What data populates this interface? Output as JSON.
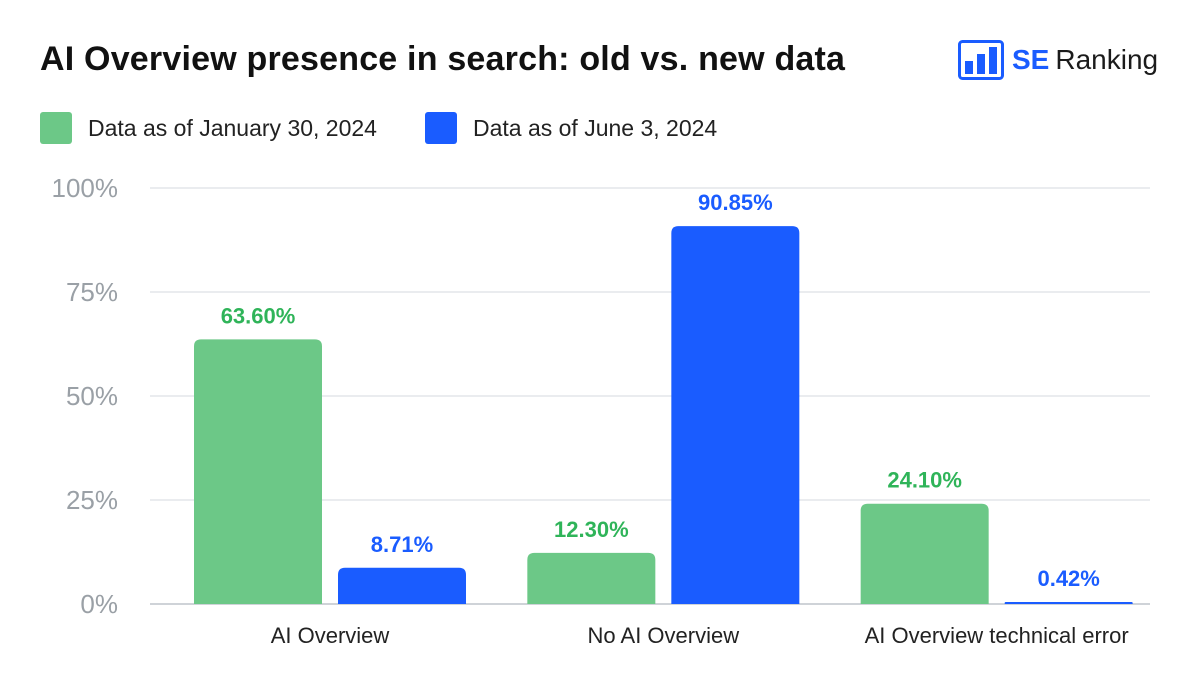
{
  "chart_data": {
    "type": "bar",
    "title": "AI Overview presence in search: old vs. new data",
    "xlabel": "",
    "ylabel": "",
    "ylim": [
      0,
      100
    ],
    "yticks": [
      "0%",
      "25%",
      "50%",
      "75%",
      "100%"
    ],
    "ytick_values": [
      0,
      25,
      50,
      75,
      100
    ],
    "grid": true,
    "legend_position": "top-left",
    "categories": [
      "AI Overview",
      "No AI Overview",
      "AI Overview technical error"
    ],
    "series": [
      {
        "name": "Data as of January 30, 2024",
        "color": "#6cc887",
        "label_color": "#2fb459",
        "values": [
          63.6,
          12.3,
          24.1
        ],
        "labels": [
          "63.60%",
          "12.30%",
          "24.10%"
        ]
      },
      {
        "name": "Data as of June 3, 2024",
        "color": "#1a5cff",
        "label_color": "#1a5cff",
        "values": [
          8.71,
          90.85,
          0.42
        ],
        "labels": [
          "8.71%",
          "90.85%",
          "0.42%"
        ]
      }
    ]
  },
  "brand": {
    "logo_icon": "bar-chart-logo-icon",
    "name_strong": "SE",
    "name_rest": "Ranking",
    "color": "#1a5cff"
  }
}
